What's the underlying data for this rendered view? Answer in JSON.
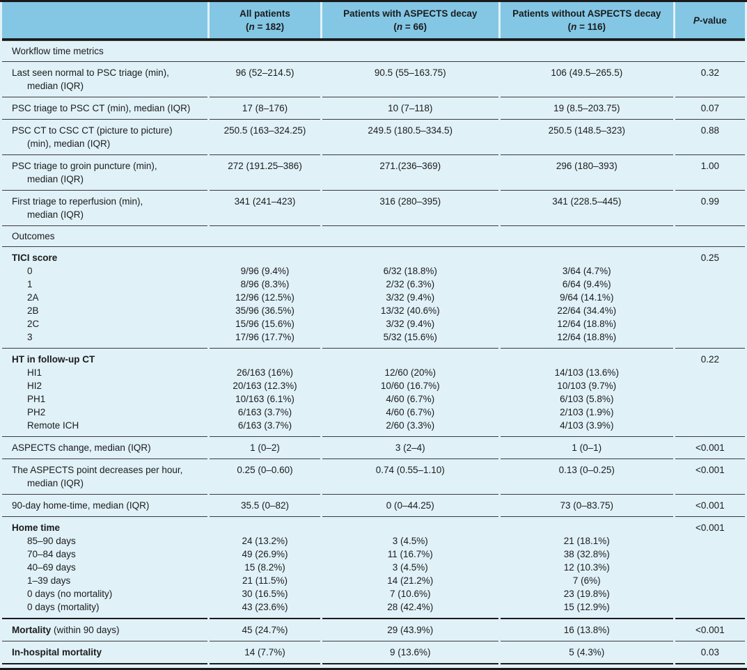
{
  "colors": {
    "header_bg": "#83C7E5",
    "row_bg": "#E0F1F8",
    "rule": "#1A1A1A",
    "text": "#1B1B1B"
  },
  "header": {
    "n_open": "(",
    "n_symbol": "n",
    "columns": [
      {
        "title": "All patients",
        "n_rest": " = 182)"
      },
      {
        "title": "Patients with ASPECTS decay",
        "n_rest": " = 66)"
      },
      {
        "title": "Patients without ASPECTS decay",
        "n_rest": " = 116)"
      }
    ],
    "p_italic": "P",
    "p_rest": "-value"
  },
  "table": {
    "rows": [
      {
        "kind": "section",
        "label": "Workflow time metrics"
      },
      {
        "kind": "metric",
        "label": "Last seen normal to PSC triage (min),",
        "label2": "median (IQR)",
        "cells": [
          "96 (52–214.5)",
          "90.5 (55–163.75)",
          "106 (49.5–265.5)"
        ],
        "p": "0.32"
      },
      {
        "kind": "metric",
        "label": "PSC triage to PSC CT (min), median (IQR)",
        "cells": [
          "17 (8–176)",
          "10 (7–118)",
          "19 (8.5–203.75)"
        ],
        "p": "0.07"
      },
      {
        "kind": "metric",
        "label": "PSC CT to CSC CT (picture to picture)",
        "label2": "(min), median (IQR)",
        "cells": [
          "250.5 (163–324.25)",
          "249.5 (180.5–334.5)",
          "250.5 (148.5–323)"
        ],
        "p": "0.88"
      },
      {
        "kind": "metric",
        "label": "PSC triage to groin puncture (min),",
        "label2": "median (IQR)",
        "cells": [
          "272 (191.25–386)",
          "271.(236–369)",
          "296 (180–393)"
        ],
        "p": "1.00"
      },
      {
        "kind": "metric",
        "label": "First triage to reperfusion (min),",
        "label2": "median (IQR)",
        "cells": [
          "341 (241–423)",
          "316 (280–395)",
          "341 (228.5–445)"
        ],
        "p": "0.99"
      },
      {
        "kind": "section",
        "label": "Outcomes"
      },
      {
        "kind": "group",
        "label": "TICI score",
        "p": "0.25",
        "items": [
          {
            "label": "0",
            "cells": [
              "9/96 (9.4%)",
              "6/32 (18.8%)",
              "3/64 (4.7%)"
            ]
          },
          {
            "label": "1",
            "cells": [
              "8/96 (8.3%)",
              "2/32 (6.3%)",
              "6/64 (9.4%)"
            ]
          },
          {
            "label": "2A",
            "cells": [
              "12/96 (12.5%)",
              "3/32 (9.4%)",
              "9/64 (14.1%)"
            ]
          },
          {
            "label": "2B",
            "cells": [
              "35/96 (36.5%)",
              "13/32 (40.6%)",
              "22/64 (34.4%)"
            ]
          },
          {
            "label": "2C",
            "cells": [
              "15/96 (15.6%)",
              "3/32 (9.4%)",
              "12/64 (18.8%)"
            ]
          },
          {
            "label": "3",
            "cells": [
              "17/96 (17.7%)",
              "5/32 (15.6%)",
              "12/64 (18.8%)"
            ]
          }
        ]
      },
      {
        "kind": "group",
        "label": "HT in follow-up CT",
        "p": "0.22",
        "items": [
          {
            "label": "HI1",
            "cells": [
              "26/163 (16%)",
              "12/60 (20%)",
              "14/103 (13.6%)"
            ]
          },
          {
            "label": "HI2",
            "cells": [
              "20/163 (12.3%)",
              "10/60 (16.7%)",
              "10/103 (9.7%)"
            ]
          },
          {
            "label": "PH1",
            "cells": [
              "10/163 (6.1%)",
              "4/60 (6.7%)",
              "6/103 (5.8%)"
            ]
          },
          {
            "label": "PH2",
            "cells": [
              "6/163 (3.7%)",
              "4/60 (6.7%)",
              "2/103 (1.9%)"
            ]
          },
          {
            "label": "Remote ICH",
            "cells": [
              "6/163 (3.7%)",
              "2/60 (3.3%)",
              "4/103 (3.9%)"
            ]
          }
        ]
      },
      {
        "kind": "metric",
        "label": "ASPECTS change, median (IQR)",
        "cells": [
          "1 (0–2)",
          "3 (2–4)",
          "1 (0–1)"
        ],
        "p": "<0.001"
      },
      {
        "kind": "metric",
        "label": "The ASPECTS point decreases per hour,",
        "label2": "median (IQR)",
        "cells": [
          "0.25 (0–0.60)",
          "0.74 (0.55–1.10)",
          "0.13 (0–0.25)"
        ],
        "p": "<0.001"
      },
      {
        "kind": "metric",
        "label": "90-day home-time, median (IQR)",
        "cells": [
          "35.5 (0–82)",
          "0 (0–44.25)",
          "73 (0–83.75)"
        ],
        "p": "<0.001"
      },
      {
        "kind": "group",
        "label": "Home time",
        "p": "<0.001",
        "rule_after": "heavy",
        "items": [
          {
            "label": "85–90 days",
            "cells": [
              "24 (13.2%)",
              "3 (4.5%)",
              "21 (18.1%)"
            ]
          },
          {
            "label": "70–84 days",
            "cells": [
              "49 (26.9%)",
              "11 (16.7%)",
              "38 (32.8%)"
            ]
          },
          {
            "label": "40–69 days",
            "cells": [
              "15 (8.2%)",
              "3 (4.5%)",
              "12 (10.3%)"
            ]
          },
          {
            "label": "1–39 days",
            "cells": [
              "21 (11.5%)",
              "14 (21.2%)",
              "7 (6%)"
            ]
          },
          {
            "label": "0 days (no mortality)",
            "cells": [
              "30 (16.5%)",
              "7 (10.6%)",
              "23 (19.8%)"
            ]
          },
          {
            "label": "0 days (mortality)",
            "cells": [
              "43 (23.6%)",
              "28 (42.4%)",
              "15 (12.9%)"
            ]
          }
        ]
      },
      {
        "kind": "metric",
        "label_bold": "Mortality",
        "label": " (within 90 days)",
        "cells": [
          "45 (24.7%)",
          "29 (43.9%)",
          "16 (13.8%)"
        ],
        "p": "<0.001"
      },
      {
        "kind": "metric",
        "label_bold": "In-hospital mortality",
        "cells": [
          "14 (7.7%)",
          "9 (13.6%)",
          "5 (4.3%)"
        ],
        "p": "0.03",
        "rule_after": "last"
      }
    ]
  }
}
